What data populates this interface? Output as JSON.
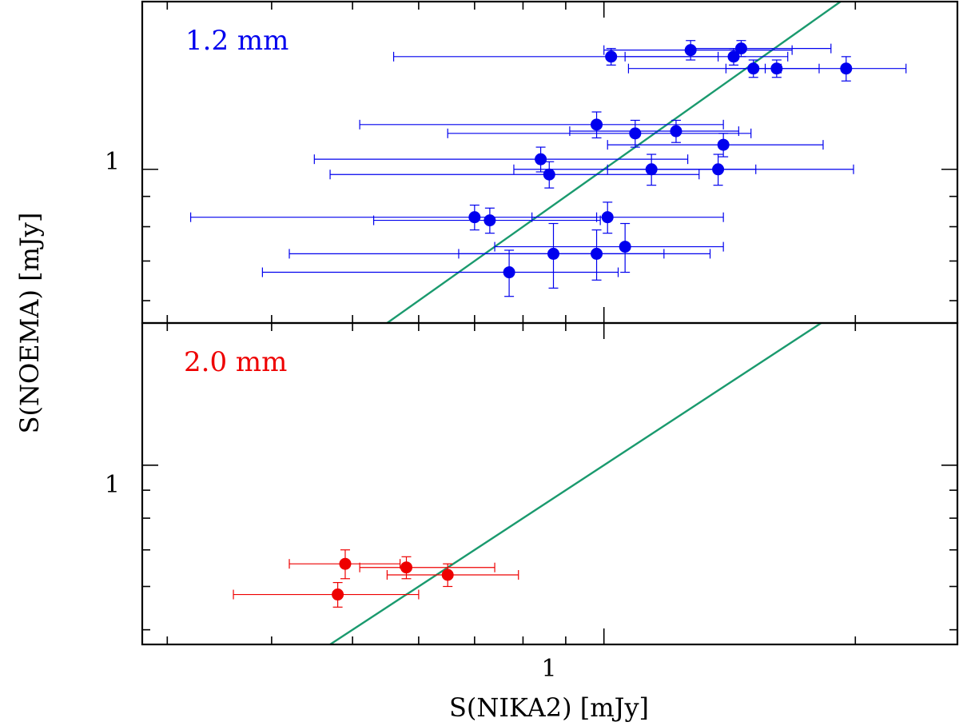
{
  "chart_data": {
    "type": "scatter",
    "xlabel": "S(NIKA2)  [mJy]",
    "ylabel": "S(NOEMA)  [mJy]",
    "x_scale": "log",
    "y_scale": "log",
    "xlim": [
      0.28,
      2.65
    ],
    "x_tick_labels": [
      {
        "value": 1,
        "label": "1"
      }
    ],
    "reference_line": "one-to-one (y = x)",
    "panels": [
      {
        "title": "1.2 mm",
        "color": "#0000ee",
        "ylim": [
          0.55,
          1.92
        ],
        "y_tick_labels": [
          {
            "value": 1,
            "label": "1"
          }
        ],
        "points": [
          {
            "x": 1.02,
            "y": 1.55,
            "xerr_lo": 0.46,
            "xerr_hi": 0.35,
            "yerr_lo": 0.05,
            "yerr_hi": 0.05
          },
          {
            "x": 1.27,
            "y": 1.59,
            "xerr_lo": 0.27,
            "xerr_hi": 0.41,
            "yerr_lo": 0.06,
            "yerr_hi": 0.06
          },
          {
            "x": 1.46,
            "y": 1.6,
            "xerr_lo": 0.19,
            "xerr_hi": 0.41,
            "yerr_lo": 0.05,
            "yerr_hi": 0.05
          },
          {
            "x": 1.43,
            "y": 1.55,
            "xerr_lo": 0.37,
            "xerr_hi": 0.23,
            "yerr_lo": 0.05,
            "yerr_hi": 0.05
          },
          {
            "x": 1.51,
            "y": 1.48,
            "xerr_lo": 0.44,
            "xerr_hi": 0.12,
            "yerr_lo": 0.05,
            "yerr_hi": 0.05
          },
          {
            "x": 1.61,
            "y": 1.48,
            "xerr_lo": 0.21,
            "xerr_hi": 0.2,
            "yerr_lo": 0.05,
            "yerr_hi": 0.05
          },
          {
            "x": 1.95,
            "y": 1.48,
            "xerr_lo": 0.39,
            "xerr_hi": 0.35,
            "yerr_lo": 0.07,
            "yerr_hi": 0.07
          },
          {
            "x": 0.98,
            "y": 1.19,
            "xerr_lo": 0.47,
            "xerr_hi": 0.41,
            "yerr_lo": 0.06,
            "yerr_hi": 0.06
          },
          {
            "x": 1.09,
            "y": 1.15,
            "xerr_lo": 0.44,
            "xerr_hi": 0.41,
            "yerr_lo": 0.06,
            "yerr_hi": 0.06
          },
          {
            "x": 1.22,
            "y": 1.16,
            "xerr_lo": 0.31,
            "xerr_hi": 0.23,
            "yerr_lo": 0.05,
            "yerr_hi": 0.05
          },
          {
            "x": 1.39,
            "y": 1.1,
            "xerr_lo": 0.38,
            "xerr_hi": 0.44,
            "yerr_lo": 0.05,
            "yerr_hi": 0.05
          },
          {
            "x": 0.84,
            "y": 1.04,
            "xerr_lo": 0.39,
            "xerr_hi": 0.42,
            "yerr_lo": 0.05,
            "yerr_hi": 0.05
          },
          {
            "x": 0.86,
            "y": 0.98,
            "xerr_lo": 0.39,
            "xerr_hi": 0.44,
            "yerr_lo": 0.05,
            "yerr_hi": 0.05
          },
          {
            "x": 1.14,
            "y": 1.0,
            "xerr_lo": 0.36,
            "xerr_hi": 0.38,
            "yerr_lo": 0.06,
            "yerr_hi": 0.06
          },
          {
            "x": 1.37,
            "y": 1.0,
            "xerr_lo": 0.36,
            "xerr_hi": 0.62,
            "yerr_lo": 0.06,
            "yerr_hi": 0.06
          },
          {
            "x": 0.7,
            "y": 0.83,
            "xerr_lo": 0.38,
            "xerr_hi": 0.28,
            "yerr_lo": 0.04,
            "yerr_hi": 0.04
          },
          {
            "x": 0.73,
            "y": 0.82,
            "xerr_lo": 0.2,
            "xerr_hi": 0.26,
            "yerr_lo": 0.04,
            "yerr_hi": 0.04
          },
          {
            "x": 1.01,
            "y": 0.83,
            "xerr_lo": 0.19,
            "xerr_hi": 0.38,
            "yerr_lo": 0.05,
            "yerr_hi": 0.05
          },
          {
            "x": 1.06,
            "y": 0.74,
            "xerr_lo": 0.32,
            "xerr_hi": 0.33,
            "yerr_lo": 0.07,
            "yerr_hi": 0.07
          },
          {
            "x": 0.87,
            "y": 0.72,
            "xerr_lo": 0.45,
            "xerr_hi": 0.31,
            "yerr_lo": 0.09,
            "yerr_hi": 0.09
          },
          {
            "x": 0.98,
            "y": 0.72,
            "xerr_lo": 0.31,
            "xerr_hi": 0.36,
            "yerr_lo": 0.07,
            "yerr_hi": 0.07
          },
          {
            "x": 0.77,
            "y": 0.67,
            "xerr_lo": 0.38,
            "xerr_hi": 0.27,
            "yerr_lo": 0.06,
            "yerr_hi": 0.06
          }
        ]
      },
      {
        "title": "2.0 mm",
        "color": "#ee0000",
        "ylim": [
          0.47,
          1.82
        ],
        "y_tick_labels": [
          {
            "value": 1,
            "label": "1"
          }
        ],
        "points": [
          {
            "x": 0.49,
            "y": 0.66,
            "xerr_lo": 0.07,
            "xerr_hi": 0.08,
            "yerr_lo": 0.04,
            "yerr_hi": 0.04
          },
          {
            "x": 0.58,
            "y": 0.65,
            "xerr_lo": 0.07,
            "xerr_hi": 0.16,
            "yerr_lo": 0.03,
            "yerr_hi": 0.03
          },
          {
            "x": 0.65,
            "y": 0.63,
            "xerr_lo": 0.1,
            "xerr_hi": 0.14,
            "yerr_lo": 0.03,
            "yerr_hi": 0.03
          },
          {
            "x": 0.48,
            "y": 0.58,
            "xerr_lo": 0.12,
            "xerr_hi": 0.12,
            "yerr_lo": 0.03,
            "yerr_hi": 0.03
          }
        ]
      }
    ]
  }
}
